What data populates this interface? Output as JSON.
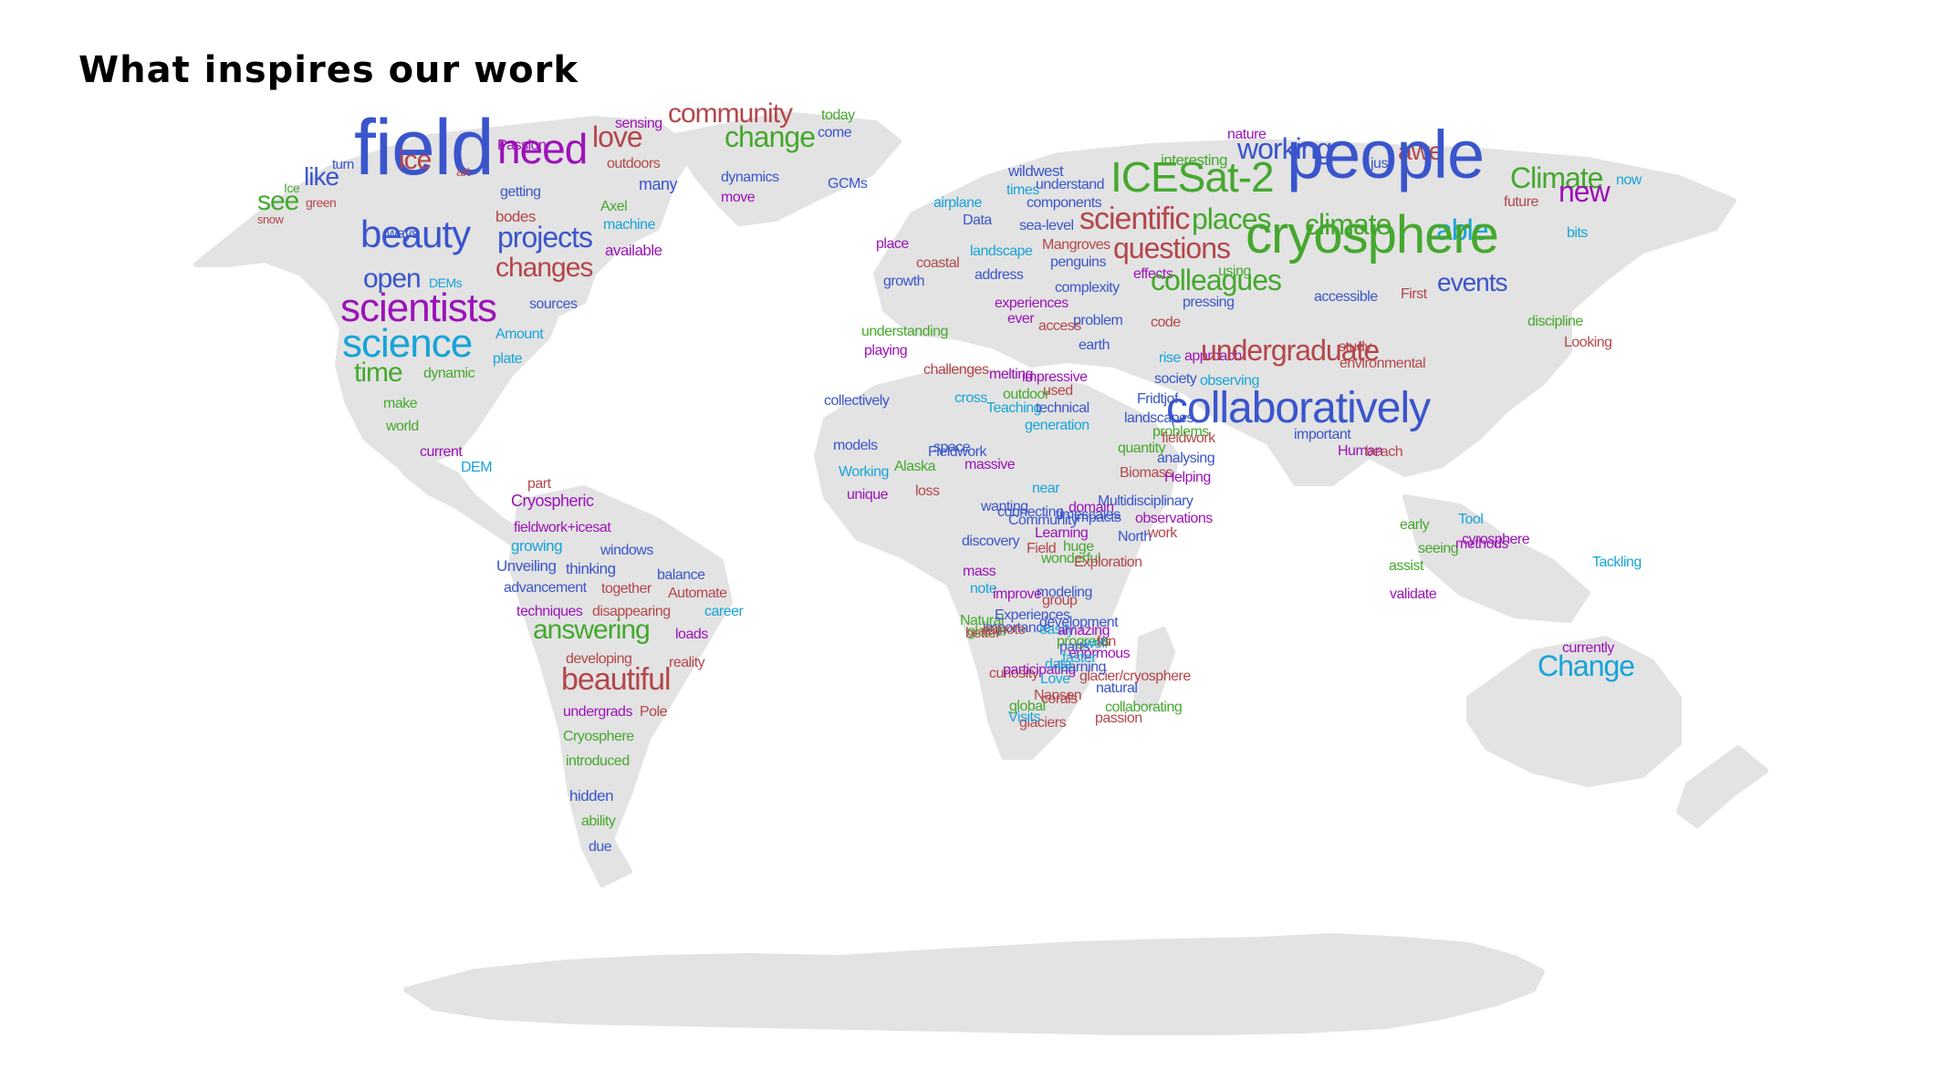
{
  "slide": {
    "title": "What inspires our work"
  },
  "colors": {
    "blue": "#3a55cc",
    "green": "#45a82e",
    "purple": "#9c12b8",
    "red": "#b4464a",
    "cyan": "#17a4d9",
    "land": "#e3e3e3"
  },
  "word_cloud": [
    {
      "text": "field",
      "color": "blue"
    },
    {
      "text": "ice",
      "color": "red"
    },
    {
      "text": "need",
      "color": "purple"
    },
    {
      "text": "like",
      "color": "blue"
    },
    {
      "text": "see",
      "color": "green"
    },
    {
      "text": "turn",
      "color": "blue"
    },
    {
      "text": "Ice",
      "color": "green"
    },
    {
      "text": "green",
      "color": "red"
    },
    {
      "text": "snow",
      "color": "red"
    },
    {
      "text": "art",
      "color": "red"
    },
    {
      "text": "Passion",
      "color": "purple"
    },
    {
      "text": "getting",
      "color": "blue"
    },
    {
      "text": "bodes",
      "color": "red"
    },
    {
      "text": "ways",
      "color": "blue"
    },
    {
      "text": "beauty",
      "color": "blue"
    },
    {
      "text": "projects",
      "color": "blue"
    },
    {
      "text": "open",
      "color": "blue"
    },
    {
      "text": "DEMs",
      "color": "cyan"
    },
    {
      "text": "changes",
      "color": "red"
    },
    {
      "text": "scientists",
      "color": "purple"
    },
    {
      "text": "sources",
      "color": "blue"
    },
    {
      "text": "science",
      "color": "cyan"
    },
    {
      "text": "Amount",
      "color": "cyan"
    },
    {
      "text": "plate",
      "color": "cyan"
    },
    {
      "text": "time",
      "color": "green"
    },
    {
      "text": "dynamic",
      "color": "green"
    },
    {
      "text": "make",
      "color": "green"
    },
    {
      "text": "world",
      "color": "green"
    },
    {
      "text": "current",
      "color": "purple"
    },
    {
      "text": "DEM",
      "color": "cyan"
    },
    {
      "text": "love",
      "color": "red"
    },
    {
      "text": "sensing",
      "color": "purple"
    },
    {
      "text": "community",
      "color": "red"
    },
    {
      "text": "today",
      "color": "green"
    },
    {
      "text": "come",
      "color": "blue"
    },
    {
      "text": "outdoors",
      "color": "red"
    },
    {
      "text": "many",
      "color": "blue"
    },
    {
      "text": "change",
      "color": "green"
    },
    {
      "text": "Axel",
      "color": "green"
    },
    {
      "text": "machine",
      "color": "cyan"
    },
    {
      "text": "available",
      "color": "purple"
    },
    {
      "text": "dynamics",
      "color": "blue"
    },
    {
      "text": "move",
      "color": "purple"
    },
    {
      "text": "GCMs",
      "color": "blue"
    },
    {
      "text": "part",
      "color": "red"
    },
    {
      "text": "Cryospheric",
      "color": "purple"
    },
    {
      "text": "fieldwork+icesat",
      "color": "purple"
    },
    {
      "text": "growing",
      "color": "cyan"
    },
    {
      "text": "windows",
      "color": "blue"
    },
    {
      "text": "Unveiling",
      "color": "blue"
    },
    {
      "text": "thinking",
      "color": "blue"
    },
    {
      "text": "balance",
      "color": "blue"
    },
    {
      "text": "advancement",
      "color": "blue"
    },
    {
      "text": "together",
      "color": "red"
    },
    {
      "text": "Automate",
      "color": "red"
    },
    {
      "text": "techniques",
      "color": "purple"
    },
    {
      "text": "disappearing",
      "color": "red"
    },
    {
      "text": "career",
      "color": "cyan"
    },
    {
      "text": "answering",
      "color": "green"
    },
    {
      "text": "loads",
      "color": "purple"
    },
    {
      "text": "developing",
      "color": "red"
    },
    {
      "text": "reality",
      "color": "red"
    },
    {
      "text": "beautiful",
      "color": "red"
    },
    {
      "text": "undergrads",
      "color": "purple"
    },
    {
      "text": "Pole",
      "color": "red"
    },
    {
      "text": "Cryosphere",
      "color": "green"
    },
    {
      "text": "introduced",
      "color": "green"
    },
    {
      "text": "hidden",
      "color": "blue"
    },
    {
      "text": "ability",
      "color": "green"
    },
    {
      "text": "due",
      "color": "blue"
    },
    {
      "text": "wildwest",
      "color": "blue"
    },
    {
      "text": "interesting",
      "color": "green"
    },
    {
      "text": "nature",
      "color": "purple"
    },
    {
      "text": "working",
      "color": "blue"
    },
    {
      "text": "just",
      "color": "blue"
    },
    {
      "text": "awe",
      "color": "red"
    },
    {
      "text": "times",
      "color": "cyan"
    },
    {
      "text": "understand",
      "color": "blue"
    },
    {
      "text": "airplane",
      "color": "cyan"
    },
    {
      "text": "components",
      "color": "blue"
    },
    {
      "text": "ICESat-2",
      "color": "green"
    },
    {
      "text": "people",
      "color": "blue"
    },
    {
      "text": "Climate",
      "color": "green"
    },
    {
      "text": "now",
      "color": "cyan"
    },
    {
      "text": "future",
      "color": "red"
    },
    {
      "text": "new",
      "color": "purple"
    },
    {
      "text": "Data",
      "color": "blue"
    },
    {
      "text": "sea-level",
      "color": "blue"
    },
    {
      "text": "scientific",
      "color": "red"
    },
    {
      "text": "places",
      "color": "green"
    },
    {
      "text": "climate",
      "color": "green"
    },
    {
      "text": "able",
      "color": "cyan"
    },
    {
      "text": "bits",
      "color": "cyan"
    },
    {
      "text": "place",
      "color": "purple"
    },
    {
      "text": "landscape",
      "color": "cyan"
    },
    {
      "text": "Mangroves",
      "color": "red"
    },
    {
      "text": "coastal",
      "color": "red"
    },
    {
      "text": "penguins",
      "color": "blue"
    },
    {
      "text": "questions",
      "color": "red"
    },
    {
      "text": "cryosphere",
      "color": "green"
    },
    {
      "text": "growth",
      "color": "blue"
    },
    {
      "text": "address",
      "color": "blue"
    },
    {
      "text": "effects",
      "color": "purple"
    },
    {
      "text": "using",
      "color": "green"
    },
    {
      "text": "complexity",
      "color": "blue"
    },
    {
      "text": "colleagues",
      "color": "green"
    },
    {
      "text": "accessible",
      "color": "blue"
    },
    {
      "text": "First",
      "color": "red"
    },
    {
      "text": "events",
      "color": "blue"
    },
    {
      "text": "experiences",
      "color": "purple"
    },
    {
      "text": "pressing",
      "color": "blue"
    },
    {
      "text": "ever",
      "color": "purple"
    },
    {
      "text": "problem",
      "color": "blue"
    },
    {
      "text": "discipline",
      "color": "green"
    },
    {
      "text": "understanding",
      "color": "green"
    },
    {
      "text": "code",
      "color": "red"
    },
    {
      "text": "access",
      "color": "red"
    },
    {
      "text": "earth",
      "color": "blue"
    },
    {
      "text": "approach",
      "color": "purple"
    },
    {
      "text": "Looking",
      "color": "red"
    },
    {
      "text": "playing",
      "color": "purple"
    },
    {
      "text": "challenges",
      "color": "red"
    },
    {
      "text": "melting",
      "color": "purple"
    },
    {
      "text": "rise",
      "color": "cyan"
    },
    {
      "text": "undergraduate",
      "color": "red"
    },
    {
      "text": "study",
      "color": "red"
    },
    {
      "text": "environmental",
      "color": "red"
    },
    {
      "text": "impressive",
      "color": "purple"
    },
    {
      "text": "society",
      "color": "blue"
    },
    {
      "text": "observing",
      "color": "cyan"
    },
    {
      "text": "outdoor",
      "color": "green"
    },
    {
      "text": "used",
      "color": "red"
    },
    {
      "text": "Fridtjof",
      "color": "blue"
    },
    {
      "text": "landscapes",
      "color": "blue"
    },
    {
      "text": "collaboratively",
      "color": "blue"
    },
    {
      "text": "collectively",
      "color": "blue"
    },
    {
      "text": "cross",
      "color": "cyan"
    },
    {
      "text": "Teaching",
      "color": "cyan"
    },
    {
      "text": "technical",
      "color": "blue"
    },
    {
      "text": "fieldwork",
      "color": "red"
    },
    {
      "text": "problems",
      "color": "green"
    },
    {
      "text": "generation",
      "color": "cyan"
    },
    {
      "text": "analysing",
      "color": "blue"
    },
    {
      "text": "important",
      "color": "blue"
    },
    {
      "text": "Human",
      "color": "purple"
    },
    {
      "text": "models",
      "color": "blue"
    },
    {
      "text": "Fieldwork",
      "color": "blue"
    },
    {
      "text": "space",
      "color": "blue"
    },
    {
      "text": "quantity",
      "color": "green"
    },
    {
      "text": "beach",
      "color": "red"
    },
    {
      "text": "massive",
      "color": "purple"
    },
    {
      "text": "Working",
      "color": "cyan"
    },
    {
      "text": "Alaska",
      "color": "green"
    },
    {
      "text": "Biomass",
      "color": "red"
    },
    {
      "text": "Helping",
      "color": "purple"
    },
    {
      "text": "unique",
      "color": "purple"
    },
    {
      "text": "loss",
      "color": "red"
    },
    {
      "text": "near",
      "color": "cyan"
    },
    {
      "text": "connecting",
      "color": "blue"
    },
    {
      "text": "Community",
      "color": "blue"
    },
    {
      "text": "domain",
      "color": "purple"
    },
    {
      "text": "Multidisciplinary",
      "color": "blue"
    },
    {
      "text": "impacts",
      "color": "blue"
    },
    {
      "text": "wanting",
      "color": "blue"
    },
    {
      "text": "timescales",
      "color": "blue"
    },
    {
      "text": "Learning",
      "color": "purple"
    },
    {
      "text": "North",
      "color": "blue"
    },
    {
      "text": "work",
      "color": "red"
    },
    {
      "text": "discovery",
      "color": "blue"
    },
    {
      "text": "observations",
      "color": "purple"
    },
    {
      "text": "early",
      "color": "green"
    },
    {
      "text": "Tool",
      "color": "cyan"
    },
    {
      "text": "seeing",
      "color": "green"
    },
    {
      "text": "Field",
      "color": "red"
    },
    {
      "text": "huge",
      "color": "green"
    },
    {
      "text": "wonderful",
      "color": "green"
    },
    {
      "text": "mass",
      "color": "purple"
    },
    {
      "text": "Exploration",
      "color": "red"
    },
    {
      "text": "note",
      "color": "cyan"
    },
    {
      "text": "modeling",
      "color": "blue"
    },
    {
      "text": "validate",
      "color": "purple"
    },
    {
      "text": "cyrosphere",
      "color": "purple"
    },
    {
      "text": "methods",
      "color": "purple"
    },
    {
      "text": "Natural",
      "color": "green"
    },
    {
      "text": "importance",
      "color": "blue"
    },
    {
      "text": "easily",
      "color": "cyan"
    },
    {
      "text": "assist",
      "color": "green"
    },
    {
      "text": "Tackling",
      "color": "cyan"
    },
    {
      "text": "improve",
      "color": "purple"
    },
    {
      "text": "group",
      "color": "red"
    },
    {
      "text": "development",
      "color": "blue"
    },
    {
      "text": "glacier",
      "color": "green"
    },
    {
      "text": "Experiences",
      "color": "blue"
    },
    {
      "text": "progress",
      "color": "green"
    },
    {
      "text": "better",
      "color": "red"
    },
    {
      "text": "remote",
      "color": "red"
    },
    {
      "text": "amazing",
      "color": "purple"
    },
    {
      "text": "well",
      "color": "cyan"
    },
    {
      "text": "parts",
      "color": "blue"
    },
    {
      "text": "fun",
      "color": "red"
    },
    {
      "text": "enormous",
      "color": "purple"
    },
    {
      "text": "faster",
      "color": "cyan"
    },
    {
      "text": "Love",
      "color": "cyan"
    },
    {
      "text": "curiosity",
      "color": "red"
    },
    {
      "text": "participating",
      "color": "purple"
    },
    {
      "text": "natural",
      "color": "blue"
    },
    {
      "text": "Nansen",
      "color": "red"
    },
    {
      "text": "glacier/cryosphere",
      "color": "red"
    },
    {
      "text": "corals",
      "color": "red"
    },
    {
      "text": "learning",
      "color": "blue"
    },
    {
      "text": "collaborating",
      "color": "green"
    },
    {
      "text": "global",
      "color": "green"
    },
    {
      "text": "passion",
      "color": "red"
    },
    {
      "text": "currently",
      "color": "purple"
    },
    {
      "text": "data",
      "color": "cyan"
    },
    {
      "text": "Change",
      "color": "cyan"
    },
    {
      "text": "glaciers",
      "color": "red"
    },
    {
      "text": "Visits",
      "color": "cyan"
    }
  ]
}
